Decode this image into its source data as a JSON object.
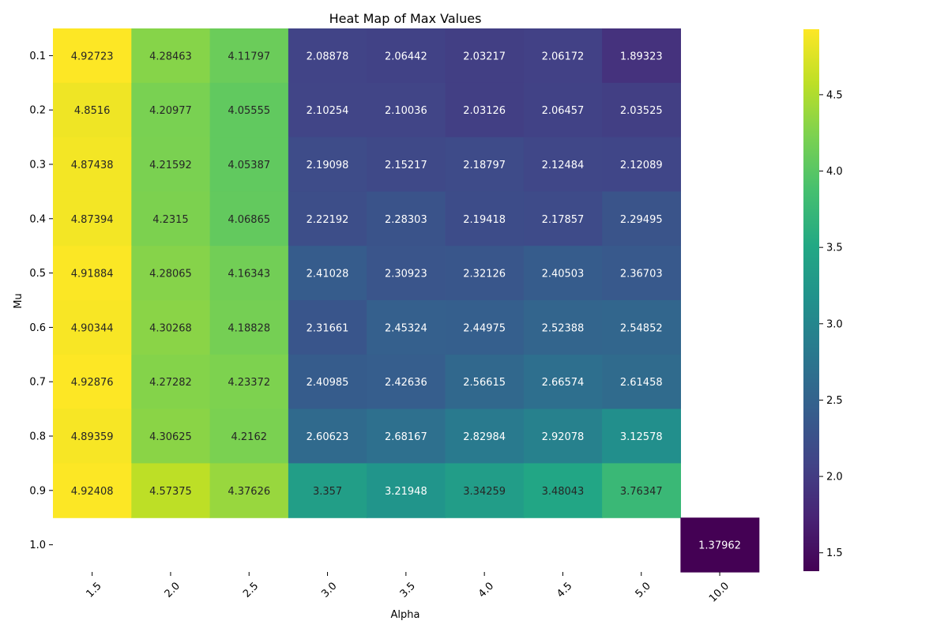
{
  "chart_data": {
    "type": "heatmap",
    "title": "Heat Map of Max Values",
    "xlabel": "Alpha",
    "ylabel": "Mu",
    "x_categories": [
      "1.5",
      "2.0",
      "2.5",
      "3.0",
      "3.5",
      "4.0",
      "4.5",
      "5.0",
      "10.0"
    ],
    "y_categories": [
      "0.1",
      "0.2",
      "0.3",
      "0.4",
      "0.5",
      "0.6",
      "0.7",
      "0.8",
      "0.9",
      "1.0"
    ],
    "values": [
      [
        "4.92723",
        "4.28463",
        "4.11797",
        "2.08878",
        "2.06442",
        "2.03217",
        "2.06172",
        "1.89323",
        null
      ],
      [
        "4.8516",
        "4.20977",
        "4.05555",
        "2.10254",
        "2.10036",
        "2.03126",
        "2.06457",
        "2.03525",
        null
      ],
      [
        "4.87438",
        "4.21592",
        "4.05387",
        "2.19098",
        "2.15217",
        "2.18797",
        "2.12484",
        "2.12089",
        null
      ],
      [
        "4.87394",
        "4.2315",
        "4.06865",
        "2.22192",
        "2.28303",
        "2.19418",
        "2.17857",
        "2.29495",
        null
      ],
      [
        "4.91884",
        "4.28065",
        "4.16343",
        "2.41028",
        "2.30923",
        "2.32126",
        "2.40503",
        "2.36703",
        null
      ],
      [
        "4.90344",
        "4.30268",
        "4.18828",
        "2.31661",
        "2.45324",
        "2.44975",
        "2.52388",
        "2.54852",
        null
      ],
      [
        "4.92876",
        "4.27282",
        "4.23372",
        "2.40985",
        "2.42636",
        "2.56615",
        "2.66574",
        "2.61458",
        null
      ],
      [
        "4.89359",
        "4.30625",
        "4.2162",
        "2.60623",
        "2.68167",
        "2.82984",
        "2.92078",
        "3.12578",
        null
      ],
      [
        "4.92408",
        "4.57375",
        "4.37626",
        "3.357",
        "3.21948",
        "3.34259",
        "3.48043",
        "3.76347",
        null
      ],
      [
        null,
        null,
        null,
        null,
        null,
        null,
        null,
        null,
        "1.37962"
      ]
    ],
    "colormap": "viridis",
    "colorbar": {
      "min": 1.37962,
      "max": 4.92876,
      "ticks": [
        "1.5",
        "2.0",
        "2.5",
        "3.0",
        "3.5",
        "4.0",
        "4.5"
      ]
    }
  }
}
